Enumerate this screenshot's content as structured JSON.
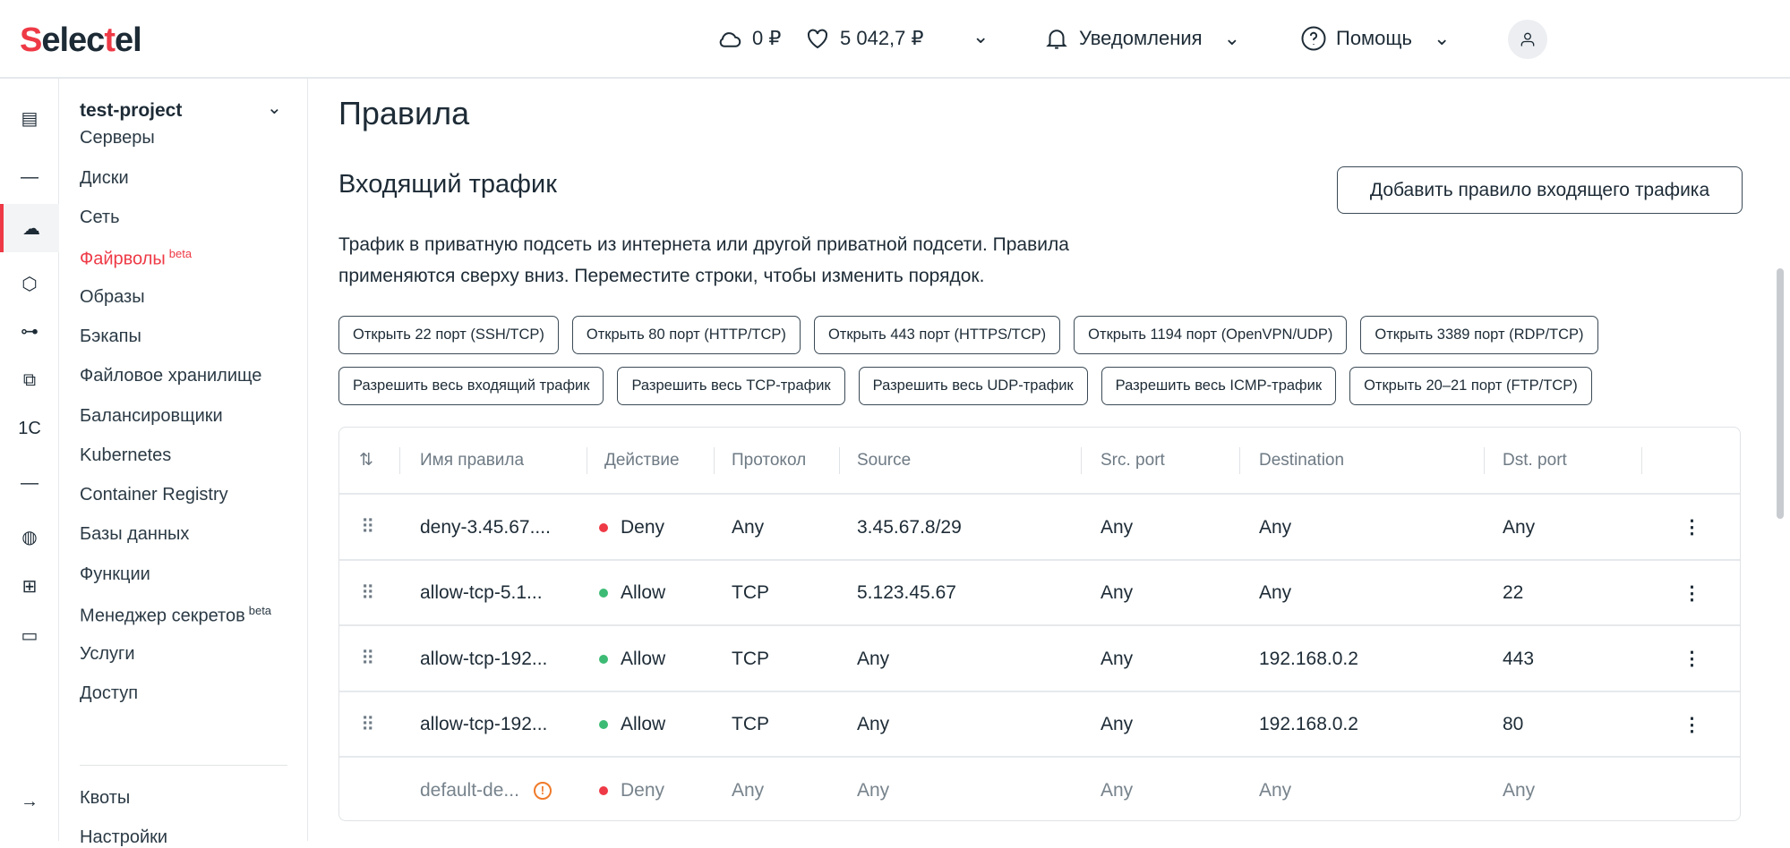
{
  "header": {
    "logo": "Selectel",
    "balance_cloud": "0 ₽",
    "balance_main": "5 042,7 ₽",
    "notifications": "Уведомления",
    "help": "Помощь"
  },
  "rail": {
    "icons": [
      "server-icon",
      "minus-icon",
      "cloud-icon",
      "cube-icon",
      "network-icon",
      "copy-icon",
      "1c-icon",
      "minus-icon",
      "globe-icon",
      "apps-add-icon",
      "monitor-icon",
      "arrow-right-icon"
    ],
    "label_1c": "1C"
  },
  "nav": {
    "project": "test-project",
    "items": [
      {
        "label": "Серверы"
      },
      {
        "label": "Диски"
      },
      {
        "label": "Сеть"
      },
      {
        "label": "Файрволы",
        "badge": "beta",
        "active": true
      },
      {
        "label": "Образы"
      },
      {
        "label": "Бэкапы"
      },
      {
        "label": "Файловое хранилище"
      },
      {
        "label": "Балансировщики"
      },
      {
        "label": "Kubernetes"
      },
      {
        "label": "Container Registry"
      },
      {
        "label": "Базы данных"
      },
      {
        "label": "Функции"
      },
      {
        "label": "Менеджер секретов",
        "badge": "beta"
      },
      {
        "label": "Услуги"
      },
      {
        "label": "Доступ"
      }
    ],
    "bottom": [
      {
        "label": "Квоты"
      },
      {
        "label": "Настройки"
      }
    ]
  },
  "page": {
    "title": "Правила",
    "section": "Входящий трафик",
    "add_button": "Добавить правило входящего трафика",
    "description": "Трафик в приватную подсеть из интернета или другой приватной подсети. Правила применяются сверху вниз. Переместите строки, чтобы изменить порядок."
  },
  "presets": [
    [
      "Открыть 22 порт (SSH/TCP)",
      "Открыть 80 порт (HTTP/TCP)",
      "Открыть 443 порт (HTTPS/TCP)",
      "Открыть 1194 порт (OpenVPN/UDP)",
      "Открыть 3389 порт (RDP/TCP)"
    ],
    [
      "Разрешить весь входящий трафик",
      "Разрешить весь TCP-трафик",
      "Разрешить весь UDP-трафик",
      "Разрешить весь ICMP-трафик",
      "Открыть 20–21 порт (FTP/TCP)"
    ]
  ],
  "table": {
    "columns": [
      "Имя правила",
      "Действие",
      "Протокол",
      "Source",
      "Src. port",
      "Destination",
      "Dst. port"
    ],
    "rows": [
      {
        "name": "deny-3.45.67....",
        "action": "Deny",
        "protocol": "Any",
        "source": "3.45.67.8/29",
        "src_port": "Any",
        "destination": "Any",
        "dst_port": "Any"
      },
      {
        "name": "allow-tcp-5.1...",
        "action": "Allow",
        "protocol": "TCP",
        "source": "5.123.45.67",
        "src_port": "Any",
        "destination": "Any",
        "dst_port": "22"
      },
      {
        "name": "allow-tcp-192...",
        "action": "Allow",
        "protocol": "TCP",
        "source": "Any",
        "src_port": "Any",
        "destination": "192.168.0.2",
        "dst_port": "443"
      },
      {
        "name": "allow-tcp-192...",
        "action": "Allow",
        "protocol": "TCP",
        "source": "Any",
        "src_port": "Any",
        "destination": "192.168.0.2",
        "dst_port": "80"
      },
      {
        "name": "default-de...",
        "action": "Deny",
        "protocol": "Any",
        "source": "Any",
        "src_port": "Any",
        "destination": "Any",
        "dst_port": "Any",
        "default": true
      }
    ]
  },
  "colors": {
    "accent": "#ee3a46",
    "allow": "#3dbb75",
    "deny": "#ee3a46",
    "warning": "#f07a2a"
  }
}
